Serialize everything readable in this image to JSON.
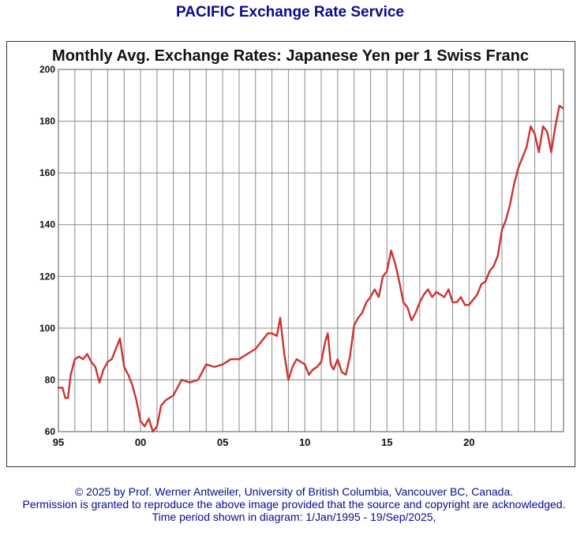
{
  "header": {
    "title": "PACIFIC Exchange Rate Service"
  },
  "chart_data": {
    "type": "line",
    "title": "Monthly Avg. Exchange Rates: Japanese Yen per 1 Swiss Franc",
    "xlabel": "",
    "ylabel": "",
    "xlim": [
      1995.0,
      2025.75
    ],
    "ylim": [
      60,
      200
    ],
    "grid": true,
    "x_ticks": [
      1995,
      2000,
      2005,
      2010,
      2015,
      2020
    ],
    "x_tick_labels": [
      "95",
      "00",
      "05",
      "10",
      "15",
      "20"
    ],
    "y_ticks": [
      60,
      80,
      100,
      120,
      140,
      160,
      180,
      200
    ],
    "y_tick_labels": [
      "60",
      "80",
      "100",
      "120",
      "140",
      "160",
      "180",
      "200"
    ],
    "series": [
      {
        "color": "#cc3333",
        "x": [
          1995.0,
          1995.25,
          1995.42,
          1995.58,
          1995.75,
          1996.0,
          1996.25,
          1996.5,
          1996.75,
          1997.0,
          1997.25,
          1997.5,
          1997.75,
          1998.0,
          1998.25,
          1998.5,
          1998.75,
          1999.0,
          1999.25,
          1999.5,
          1999.75,
          2000.0,
          2000.25,
          2000.5,
          2000.75,
          2001.0,
          2001.25,
          2001.5,
          2001.75,
          2002.0,
          2002.5,
          2003.0,
          2003.5,
          2004.0,
          2004.5,
          2005.0,
          2005.5,
          2006.0,
          2006.5,
          2007.0,
          2007.5,
          2007.75,
          2008.0,
          2008.3,
          2008.5,
          2008.75,
          2009.0,
          2009.25,
          2009.5,
          2009.75,
          2010.0,
          2010.25,
          2010.5,
          2010.75,
          2011.0,
          2011.25,
          2011.4,
          2011.58,
          2011.75,
          2012.0,
          2012.25,
          2012.5,
          2012.75,
          2013.0,
          2013.25,
          2013.5,
          2013.75,
          2014.0,
          2014.25,
          2014.5,
          2014.75,
          2015.0,
          2015.25,
          2015.5,
          2015.75,
          2016.0,
          2016.25,
          2016.5,
          2016.75,
          2017.0,
          2017.25,
          2017.5,
          2017.75,
          2018.0,
          2018.25,
          2018.5,
          2018.75,
          2019.0,
          2019.25,
          2019.5,
          2019.75,
          2020.0,
          2020.25,
          2020.5,
          2020.75,
          2021.0,
          2021.25,
          2021.5,
          2021.75,
          2022.0,
          2022.25,
          2022.5,
          2022.75,
          2023.0,
          2023.25,
          2023.5,
          2023.75,
          2024.0,
          2024.25,
          2024.5,
          2024.75,
          2025.0,
          2025.25,
          2025.5,
          2025.71
        ],
        "y": [
          77,
          77,
          73,
          73,
          82,
          88,
          89,
          88,
          90,
          87,
          85,
          79,
          84,
          87,
          88,
          92,
          96,
          85,
          82,
          78,
          72,
          64,
          62,
          65,
          60,
          62,
          70,
          72,
          73,
          74,
          80,
          79,
          80,
          86,
          85,
          86,
          88,
          88,
          90,
          92,
          96,
          98,
          98,
          97,
          104,
          90,
          80,
          85,
          88,
          87,
          86,
          82,
          84,
          85,
          87,
          95,
          98,
          86,
          84,
          88,
          83,
          82,
          89,
          101,
          104,
          106,
          110,
          112,
          115,
          112,
          120,
          122,
          130,
          125,
          118,
          110,
          108,
          103,
          106,
          110,
          113,
          115,
          112,
          114,
          113,
          112,
          115,
          110,
          110,
          112,
          109,
          109,
          111,
          113,
          117,
          118,
          122,
          124,
          128,
          138,
          142,
          148,
          156,
          162,
          166,
          170,
          178,
          175,
          168,
          178,
          176,
          168,
          178,
          186,
          185
        ]
      }
    ]
  },
  "footer": {
    "line1": "© 2025 by Prof. Werner Antweiler, University of British Columbia, Vancouver BC, Canada.",
    "line2": "Permission is granted to reproduce the above image provided that the source and copyright are acknowledged.",
    "line3": "Time period shown in diagram: 1/Jan/1995 - 19/Sep/2025,"
  }
}
